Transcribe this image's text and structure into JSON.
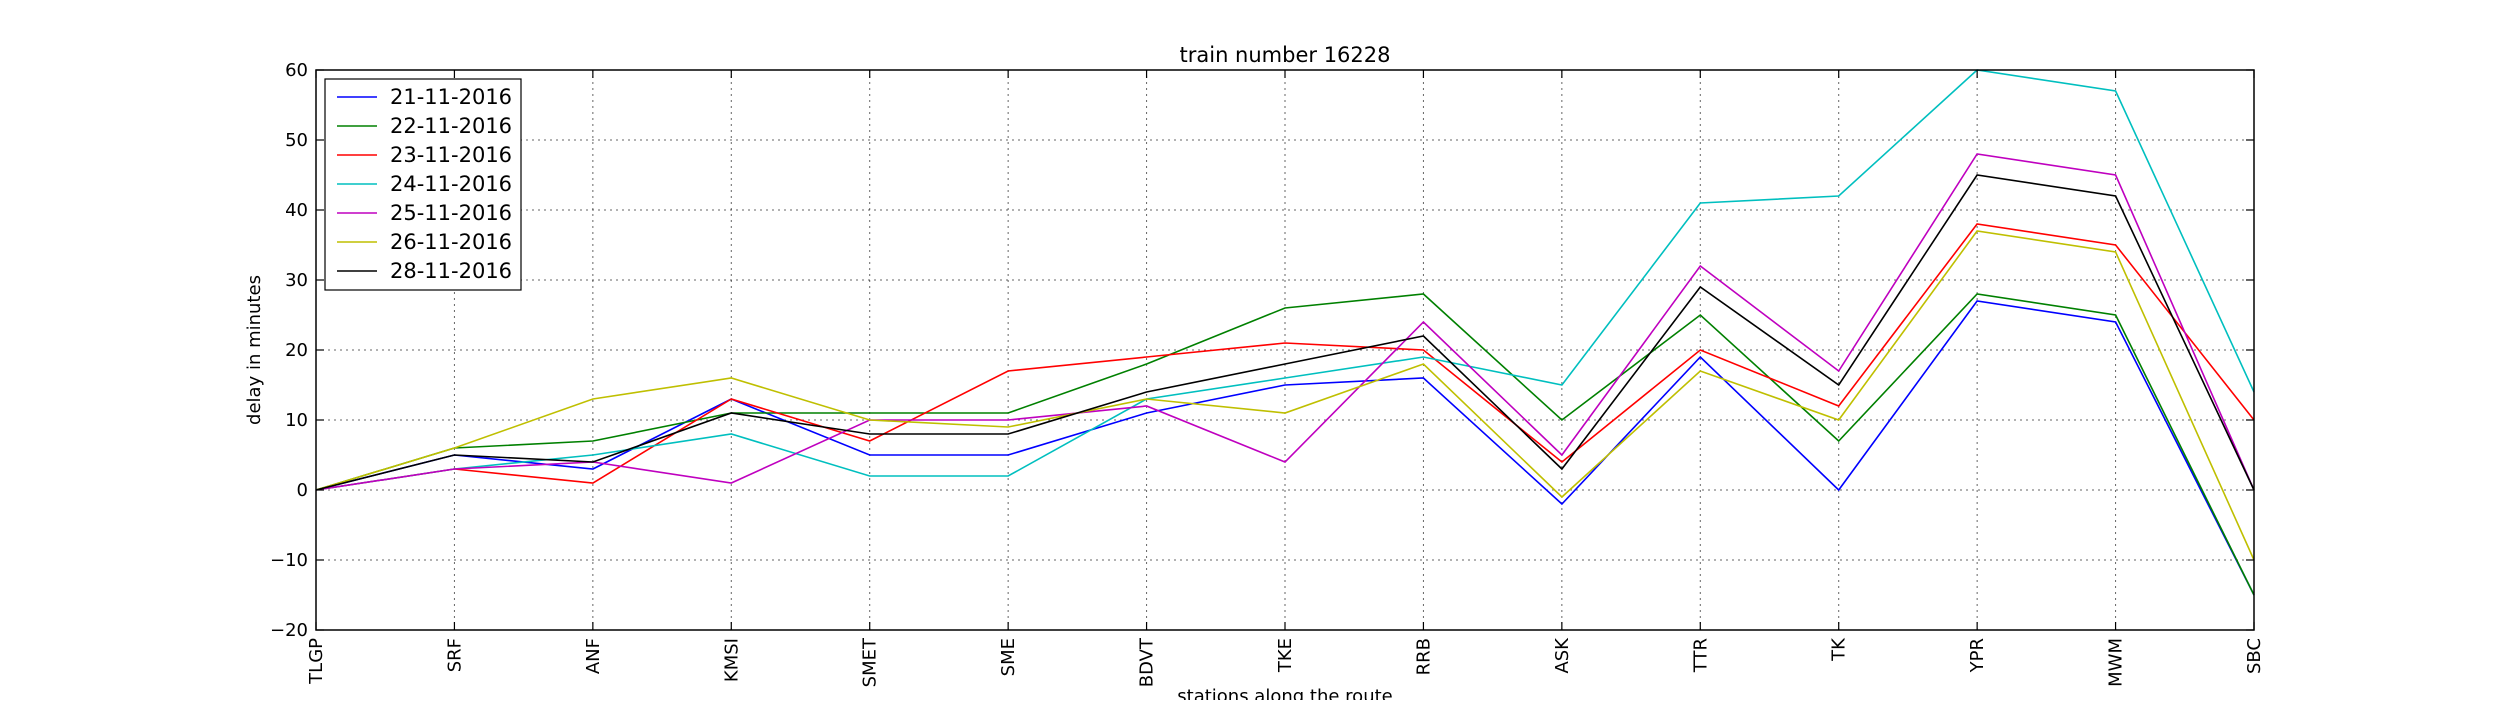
{
  "chart_data": {
    "type": "line",
    "title": "train number 16228",
    "xlabel": "stations along the route",
    "ylabel": "delay in minutes",
    "categories": [
      "TLGP",
      "SRF",
      "ANF",
      "KMSI",
      "SMET",
      "SME",
      "BDVT",
      "TKE",
      "RRB",
      "ASK",
      "TTR",
      "TK",
      "YPR",
      "MWM",
      "SBC"
    ],
    "ylim": [
      -20,
      60
    ],
    "yticks": [
      -20,
      -10,
      0,
      10,
      20,
      30,
      40,
      50,
      60
    ],
    "grid": true,
    "legend_position": "top-left",
    "series": [
      {
        "name": "21-11-2016",
        "color": "#0000ff",
        "values": [
          0,
          5,
          3,
          13,
          5,
          5,
          11,
          15,
          16,
          -2,
          19,
          0,
          27,
          24,
          -15
        ]
      },
      {
        "name": "22-11-2016",
        "color": "#008000",
        "values": [
          0,
          6,
          7,
          11,
          11,
          11,
          18,
          26,
          28,
          10,
          25,
          7,
          28,
          25,
          -15
        ]
      },
      {
        "name": "23-11-2016",
        "color": "#ff0000",
        "values": [
          0,
          3,
          1,
          13,
          7,
          17,
          19,
          21,
          20,
          4,
          20,
          12,
          38,
          35,
          10
        ]
      },
      {
        "name": "24-11-2016",
        "color": "#00bfbf",
        "values": [
          0,
          3,
          5,
          8,
          2,
          2,
          13,
          16,
          19,
          15,
          41,
          42,
          60,
          57,
          14
        ]
      },
      {
        "name": "25-11-2016",
        "color": "#bf00bf",
        "values": [
          0,
          3,
          4,
          1,
          10,
          10,
          12,
          4,
          24,
          5,
          32,
          17,
          48,
          45,
          0
        ]
      },
      {
        "name": "26-11-2016",
        "color": "#bfbf00",
        "values": [
          0,
          6,
          13,
          16,
          10,
          9,
          13,
          11,
          18,
          -1,
          17,
          10,
          37,
          34,
          -10
        ]
      },
      {
        "name": "28-11-2016",
        "color": "#000000",
        "values": [
          0,
          5,
          4,
          11,
          8,
          8,
          14,
          18,
          22,
          3,
          29,
          15,
          45,
          42,
          0
        ]
      }
    ]
  }
}
